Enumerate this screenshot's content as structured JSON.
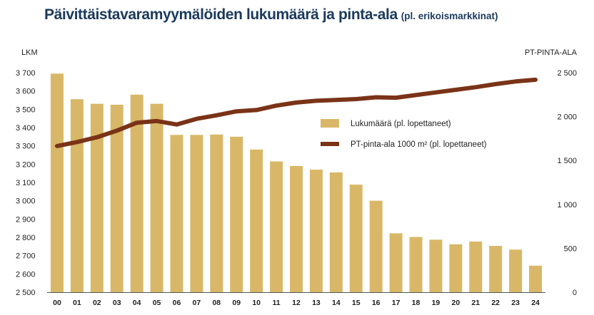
{
  "title": {
    "main": "Päivittäistavaramyymälöiden lukumäärä ja pinta-ala",
    "sub": "(pl. erikoismarkkinat)"
  },
  "colors": {
    "title": "#1b3a5c",
    "bar": "#d8b868",
    "line": "#7a3317",
    "highlight_tick": "#1b3a5c"
  },
  "chart_data": {
    "type": "bar+line",
    "categories": [
      "00",
      "01",
      "02",
      "03",
      "04",
      "05",
      "06",
      "07",
      "08",
      "09",
      "10",
      "11",
      "12",
      "13",
      "14",
      "15",
      "16",
      "17",
      "18",
      "19",
      "20",
      "21",
      "22",
      "23",
      "24"
    ],
    "highlight_categories": [
      "23",
      "24"
    ],
    "y_left": {
      "label": "LKM",
      "range": [
        2500,
        3700
      ],
      "ticks": [
        2500,
        2600,
        2700,
        2800,
        2900,
        3000,
        3100,
        3200,
        3300,
        3400,
        3500,
        3600,
        3700
      ],
      "tick_labels": [
        "2 500",
        "2 600",
        "2 700",
        "2 800",
        "2 900",
        "3 000",
        "3 100",
        "3 200",
        "3 300",
        "3 400",
        "3 500",
        "3 600",
        "3 700"
      ]
    },
    "y_right": {
      "label": "PT-PINTA-ALA",
      "range": [
        0,
        2500
      ],
      "ticks": [
        0,
        500,
        1000,
        1500,
        2000,
        2500
      ],
      "tick_labels": [
        "0",
        "500",
        "1 000",
        "1 500",
        "2 000",
        "2 500"
      ]
    },
    "series": [
      {
        "name": "Lukumäärä (pl. lopettaneet)",
        "type": "bar",
        "axis": "left",
        "values": [
          3695,
          3555,
          3530,
          3525,
          3580,
          3530,
          3360,
          3360,
          3362,
          3350,
          3280,
          3215,
          3190,
          3170,
          3155,
          3088,
          3000,
          2822,
          2802,
          2787,
          2762,
          2777,
          2753,
          2733,
          2645
        ]
      },
      {
        "name": "PT-pinta-ala 1000 m² (pl. lopettaneet)",
        "type": "line",
        "axis": "right",
        "values": [
          1665,
          1710,
          1765,
          1840,
          1930,
          1950,
          1910,
          1975,
          2015,
          2060,
          2075,
          2125,
          2160,
          2180,
          2190,
          2200,
          2220,
          2215,
          2245,
          2275,
          2305,
          2335,
          2370,
          2400,
          2420
        ]
      }
    ],
    "legend_position": "center-right",
    "grid": false
  }
}
